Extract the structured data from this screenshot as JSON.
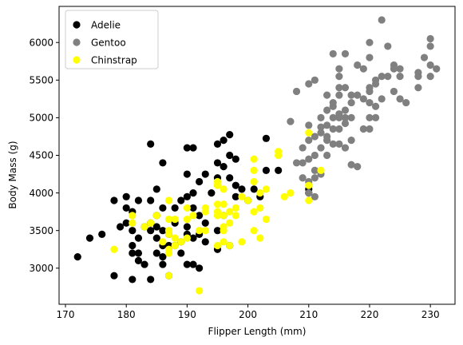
{
  "chart_data": {
    "type": "scatter",
    "title": "",
    "xlabel": "Flipper Length (mm)",
    "ylabel": "Body Mass (g)",
    "xlim": [
      168.95,
      234.05
    ],
    "ylim": [
      2520,
      6480
    ],
    "x_ticks": [
      170,
      180,
      190,
      200,
      210,
      220,
      230
    ],
    "y_ticks": [
      3000,
      3500,
      4000,
      4500,
      5000,
      5500,
      6000
    ],
    "grid": false,
    "legend_position": "top-left",
    "series": [
      {
        "name": "Adelie",
        "color": "#000000",
        "points": [
          [
            172,
            3150
          ],
          [
            174,
            3400
          ],
          [
            176,
            3450
          ],
          [
            178,
            2900
          ],
          [
            178,
            3900
          ],
          [
            179,
            3550
          ],
          [
            180,
            3600
          ],
          [
            180,
            3950
          ],
          [
            180,
            3800
          ],
          [
            181,
            2850
          ],
          [
            181,
            3200
          ],
          [
            181,
            3300
          ],
          [
            181,
            3500
          ],
          [
            181,
            3750
          ],
          [
            182,
            3100
          ],
          [
            182,
            3200
          ],
          [
            182,
            3400
          ],
          [
            182,
            3900
          ],
          [
            183,
            3050
          ],
          [
            183,
            3550
          ],
          [
            184,
            2850
          ],
          [
            184,
            3500
          ],
          [
            184,
            3600
          ],
          [
            184,
            3900
          ],
          [
            184,
            4650
          ],
          [
            185,
            3200
          ],
          [
            185,
            3400
          ],
          [
            185,
            3700
          ],
          [
            185,
            3550
          ],
          [
            185,
            4050
          ],
          [
            186,
            3050
          ],
          [
            186,
            3150
          ],
          [
            186,
            3300
          ],
          [
            186,
            3500
          ],
          [
            186,
            3800
          ],
          [
            186,
            4400
          ],
          [
            187,
            3300
          ],
          [
            187,
            3450
          ],
          [
            187,
            2900
          ],
          [
            188,
            3300
          ],
          [
            188,
            3600
          ],
          [
            188,
            3800
          ],
          [
            189,
            3200
          ],
          [
            189,
            3350
          ],
          [
            189,
            3900
          ],
          [
            190,
            3050
          ],
          [
            190,
            3450
          ],
          [
            190,
            3550
          ],
          [
            190,
            3950
          ],
          [
            190,
            4250
          ],
          [
            190,
            4600
          ],
          [
            191,
            3050
          ],
          [
            191,
            3400
          ],
          [
            191,
            3800
          ],
          [
            191,
            4000
          ],
          [
            191,
            4600
          ],
          [
            192,
            3450
          ],
          [
            192,
            3000
          ],
          [
            192,
            3700
          ],
          [
            192,
            4150
          ],
          [
            193,
            3600
          ],
          [
            193,
            4250
          ],
          [
            193,
            3350
          ],
          [
            194,
            4000
          ],
          [
            195,
            3250
          ],
          [
            195,
            3500
          ],
          [
            195,
            4200
          ],
          [
            195,
            4400
          ],
          [
            195,
            4650
          ],
          [
            196,
            3700
          ],
          [
            196,
            4700
          ],
          [
            196,
            4350
          ],
          [
            197,
            3300
          ],
          [
            197,
            4200
          ],
          [
            197,
            4500
          ],
          [
            197,
            4775
          ],
          [
            198,
            3950
          ],
          [
            198,
            4100
          ],
          [
            198,
            4450
          ],
          [
            199,
            4050
          ],
          [
            200,
            3900
          ],
          [
            201,
            4050
          ],
          [
            202,
            3950
          ],
          [
            203,
            4300
          ],
          [
            203,
            4725
          ],
          [
            205,
            4300
          ],
          [
            210,
            4000
          ],
          [
            210,
            4050
          ]
        ]
      },
      {
        "name": "Gentoo",
        "color": "#808080",
        "points": [
          [
            207,
            4950
          ],
          [
            208,
            4400
          ],
          [
            208,
            5350
          ],
          [
            209,
            4400
          ],
          [
            209,
            4600
          ],
          [
            209,
            4200
          ],
          [
            210,
            4000
          ],
          [
            210,
            4150
          ],
          [
            210,
            4450
          ],
          [
            210,
            4700
          ],
          [
            210,
            4900
          ],
          [
            210,
            5450
          ],
          [
            211,
            3950
          ],
          [
            211,
            4200
          ],
          [
            211,
            4300
          ],
          [
            211,
            4500
          ],
          [
            211,
            4750
          ],
          [
            211,
            5500
          ],
          [
            212,
            4600
          ],
          [
            212,
            4800
          ],
          [
            212,
            4875
          ],
          [
            212,
            5000
          ],
          [
            212,
            4250
          ],
          [
            213,
            4500
          ],
          [
            213,
            4700
          ],
          [
            213,
            4750
          ],
          [
            213,
            4900
          ],
          [
            213,
            5100
          ],
          [
            213,
            5300
          ],
          [
            214,
            4650
          ],
          [
            214,
            4850
          ],
          [
            214,
            5000
          ],
          [
            214,
            5150
          ],
          [
            214,
            5200
          ],
          [
            214,
            5850
          ],
          [
            215,
            4650
          ],
          [
            215,
            4850
          ],
          [
            215,
            5000
          ],
          [
            215,
            5050
          ],
          [
            215,
            5300
          ],
          [
            215,
            5400
          ],
          [
            215,
            5550
          ],
          [
            215,
            5650
          ],
          [
            216,
            4600
          ],
          [
            216,
            4925
          ],
          [
            216,
            5000
          ],
          [
            216,
            5100
          ],
          [
            216,
            5400
          ],
          [
            216,
            5850
          ],
          [
            217,
            4700
          ],
          [
            217,
            5000
          ],
          [
            217,
            5200
          ],
          [
            217,
            5300
          ],
          [
            217,
            4375
          ],
          [
            218,
            5700
          ],
          [
            218,
            5300
          ],
          [
            218,
            4350
          ],
          [
            219,
            4850
          ],
          [
            219,
            5250
          ],
          [
            219,
            5650
          ],
          [
            220,
            4850
          ],
          [
            220,
            5000
          ],
          [
            220,
            5200
          ],
          [
            220,
            5350
          ],
          [
            220,
            5400
          ],
          [
            220,
            5800
          ],
          [
            220,
            6000
          ],
          [
            221,
            5150
          ],
          [
            221,
            5450
          ],
          [
            221,
            5500
          ],
          [
            221,
            5000
          ],
          [
            222,
            5250
          ],
          [
            222,
            5550
          ],
          [
            222,
            6300
          ],
          [
            223,
            5550
          ],
          [
            223,
            5950
          ],
          [
            224,
            5350
          ],
          [
            224,
            5650
          ],
          [
            224,
            5700
          ],
          [
            225,
            5250
          ],
          [
            225,
            5550
          ],
          [
            225,
            5650
          ],
          [
            226,
            5200
          ],
          [
            228,
            5400
          ],
          [
            228,
            5550
          ],
          [
            228,
            5600
          ],
          [
            229,
            5800
          ],
          [
            230,
            5550
          ],
          [
            230,
            5700
          ],
          [
            230,
            5950
          ],
          [
            231,
            5650
          ],
          [
            230,
            6050
          ]
        ]
      },
      {
        "name": "Chinstrap",
        "color": "#ffff00",
        "points": [
          [
            178,
            3250
          ],
          [
            181,
            3600
          ],
          [
            181,
            3700
          ],
          [
            183,
            3550
          ],
          [
            184,
            3600
          ],
          [
            185,
            3700
          ],
          [
            186,
            3350
          ],
          [
            187,
            2900
          ],
          [
            187,
            3200
          ],
          [
            187,
            3250
          ],
          [
            187,
            3450
          ],
          [
            187,
            3500
          ],
          [
            187,
            3650
          ],
          [
            187,
            3900
          ],
          [
            188,
            3300
          ],
          [
            188,
            3400
          ],
          [
            188,
            3650
          ],
          [
            189,
            3350
          ],
          [
            190,
            3400
          ],
          [
            190,
            3650
          ],
          [
            190,
            3800
          ],
          [
            191,
            3700
          ],
          [
            192,
            2700
          ],
          [
            192,
            3500
          ],
          [
            193,
            3500
          ],
          [
            193,
            3750
          ],
          [
            193,
            3800
          ],
          [
            195,
            3300
          ],
          [
            195,
            3700
          ],
          [
            195,
            3750
          ],
          [
            195,
            3850
          ],
          [
            195,
            4100
          ],
          [
            195,
            4150
          ],
          [
            196,
            3350
          ],
          [
            196,
            3500
          ],
          [
            196,
            3550
          ],
          [
            196,
            3700
          ],
          [
            196,
            3850
          ],
          [
            196,
            4050
          ],
          [
            197,
            3300
          ],
          [
            197,
            3600
          ],
          [
            197,
            3750
          ],
          [
            198,
            3700
          ],
          [
            198,
            3800
          ],
          [
            199,
            3950
          ],
          [
            199,
            3350
          ],
          [
            200,
            3900
          ],
          [
            201,
            3750
          ],
          [
            201,
            3500
          ],
          [
            201,
            4150
          ],
          [
            201,
            4300
          ],
          [
            201,
            4450
          ],
          [
            202,
            3400
          ],
          [
            202,
            3800
          ],
          [
            202,
            4000
          ],
          [
            203,
            3650
          ],
          [
            203,
            4050
          ],
          [
            205,
            4500
          ],
          [
            205,
            4550
          ],
          [
            206,
            3950
          ],
          [
            207,
            4000
          ],
          [
            210,
            3900
          ],
          [
            210,
            4100
          ],
          [
            210,
            4800
          ],
          [
            212,
            4300
          ]
        ]
      }
    ]
  }
}
